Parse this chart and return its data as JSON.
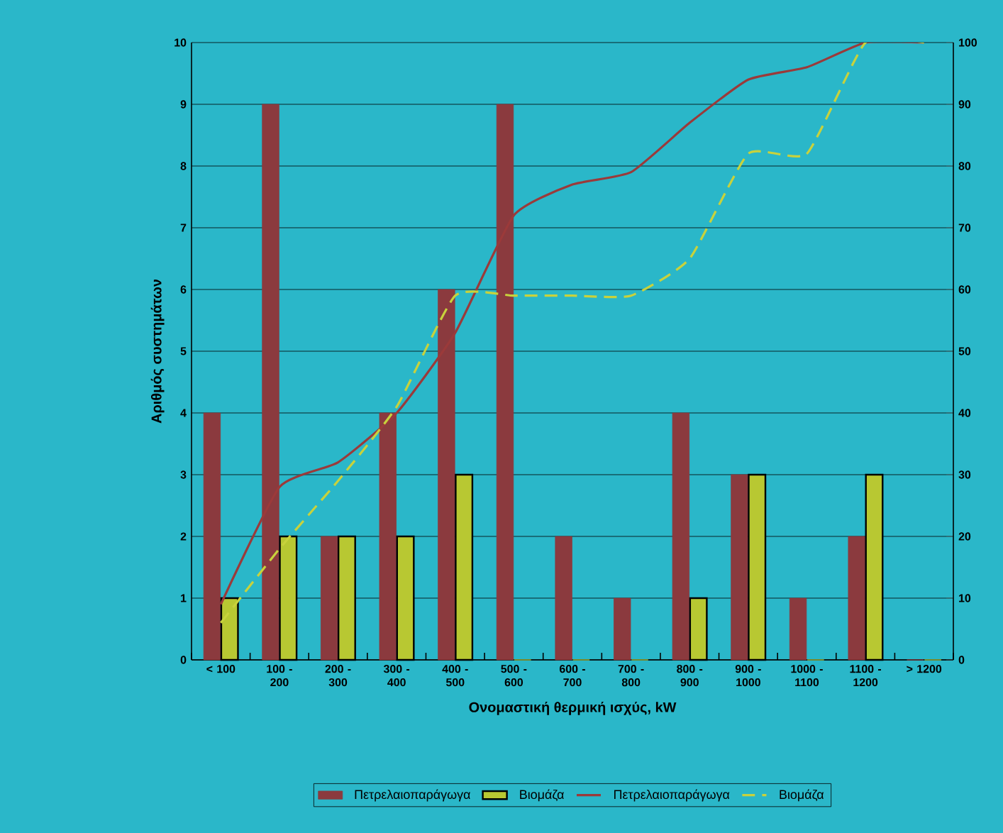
{
  "chart_data": {
    "type": "bar",
    "xlabel": "Ονομαστική θερμική ισχύς, kW",
    "ylabel": "Αριθμός συστημάτων",
    "categories": [
      "< 100",
      "100 - 200",
      "200 - 300",
      "300 - 400",
      "400 - 500",
      "500 - 600",
      "600 - 700",
      "700 - 800",
      "800 - 900",
      "900 - 1000",
      "1000 - 1100",
      "1100 - 1200",
      "> 1200"
    ],
    "series": [
      {
        "name": "Πετρελαιοπαράγωγα",
        "color": "#8b3a3e",
        "values": [
          4,
          9,
          2,
          4,
          6,
          9,
          2,
          1,
          4,
          3,
          1,
          2,
          0
        ]
      },
      {
        "name": "Βιομάζα",
        "color": "#b8c832",
        "values": [
          1,
          2,
          2,
          2,
          3,
          0,
          0,
          0,
          1,
          3,
          0,
          3,
          0
        ]
      },
      {
        "name": "Πετρελαιοπαράγωγα",
        "type": "line",
        "axis": "y2",
        "line_style": "solid",
        "color": "#9b3a3a",
        "values": [
          9,
          28,
          32,
          40,
          53,
          72,
          77,
          79,
          87,
          94,
          96,
          100,
          100
        ]
      },
      {
        "name": "Βιομάζα",
        "type": "line",
        "axis": "y2",
        "line_style": "dashed",
        "color": "#c8d23c",
        "values": [
          6,
          18,
          29,
          41,
          59,
          59,
          59,
          59,
          65,
          82,
          82,
          100,
          100
        ]
      }
    ],
    "ylim": [
      0,
      10
    ],
    "yticks": [
      0,
      1,
      2,
      3,
      4,
      5,
      6,
      7,
      8,
      9,
      10
    ],
    "y2lim": [
      0,
      100
    ],
    "y2ticks": [
      0,
      10,
      20,
      30,
      40,
      50,
      60,
      70,
      80,
      90,
      100
    ],
    "grid": "y",
    "legend": "bottom",
    "marker": "none"
  }
}
